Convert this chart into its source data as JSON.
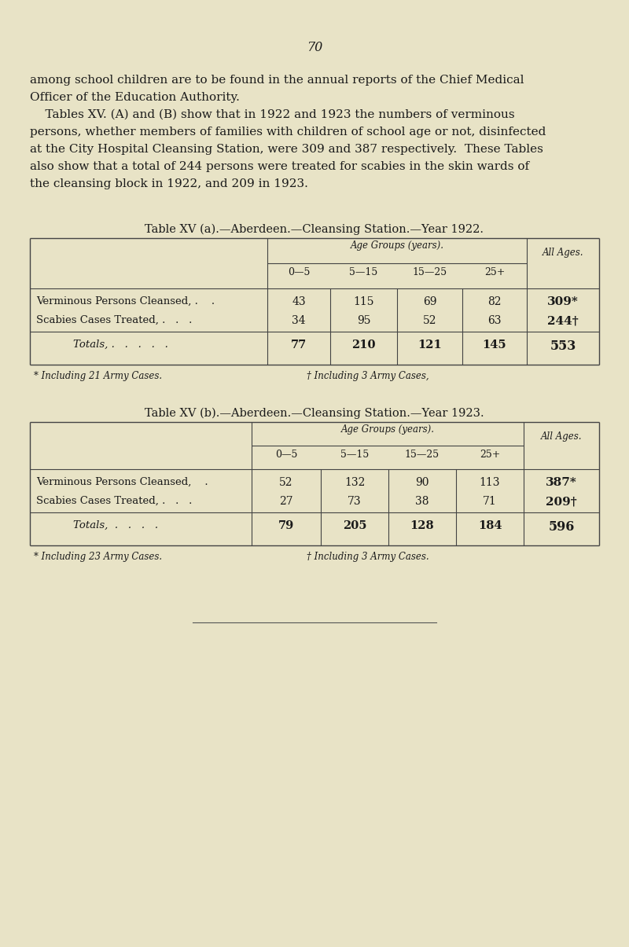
{
  "bg_color": "#e8e3c6",
  "text_color": "#1a1a1a",
  "page_number": "70",
  "intro_lines": [
    "among school children are to be found in the annual reports of the Chief Medical",
    "Officer of the Education Authority.",
    "    Tables XV. (A) and (B) show that in 1922 and 1923 the numbers of verminous",
    "persons, whether members of families with children of school age or not, disinfected",
    "at the City Hospital Cleansing Station, were 309 and 387 respectively.  These Tables",
    "also show that a total of 244 persons were treated for scabies in the skin wards of",
    "the cleansing block in 1922, and 209 in 1923."
  ],
  "table_a_title": "Table XV (a).—Aberdeen.—Cleansing Station.—Year 1922.",
  "table_a_subheader": "Age Groups (years).",
  "table_a_col_headers": [
    "0—5",
    "5—15",
    "15—25",
    "25+"
  ],
  "table_a_all_ages": "All Ages.",
  "table_a_rows": [
    [
      "Verminous Persons Cleansed, .    .",
      "43",
      "115",
      "69",
      "82",
      "309*"
    ],
    [
      "Scabies Cases Treated, .   .   .",
      "34",
      "95",
      "52",
      "63",
      "244†"
    ]
  ],
  "table_a_totals_label": "Totals, .   .   .   .   .",
  "table_a_totals": [
    "77",
    "210",
    "121",
    "145",
    "553"
  ],
  "table_a_fn1": "* Including 21 Army Cases.",
  "table_a_fn2": "† Including 3 Army Cases,",
  "table_b_title": "Table XV (b).—Aberdeen.—Cleansing Station.—Year 1923.",
  "table_b_subheader": "Age Groups (years).",
  "table_b_col_headers": [
    "0—5",
    "5—15",
    "15—25",
    "25+"
  ],
  "table_b_all_ages": "All Ages.",
  "table_b_rows": [
    [
      "Verminous Persons Cleansed,    .",
      "52",
      "132",
      "90",
      "113",
      "387*"
    ],
    [
      "Scabies Cases Treated, .   .   .",
      "27",
      "73",
      "38",
      "71",
      "209†"
    ]
  ],
  "table_b_totals_label": "Totals,  .   .   .   .",
  "table_b_totals": [
    "79",
    "205",
    "128",
    "184",
    "596"
  ],
  "table_b_fn1": "* Including 23 Army Cases.",
  "table_b_fn2": "† Including 3 Army Cases."
}
